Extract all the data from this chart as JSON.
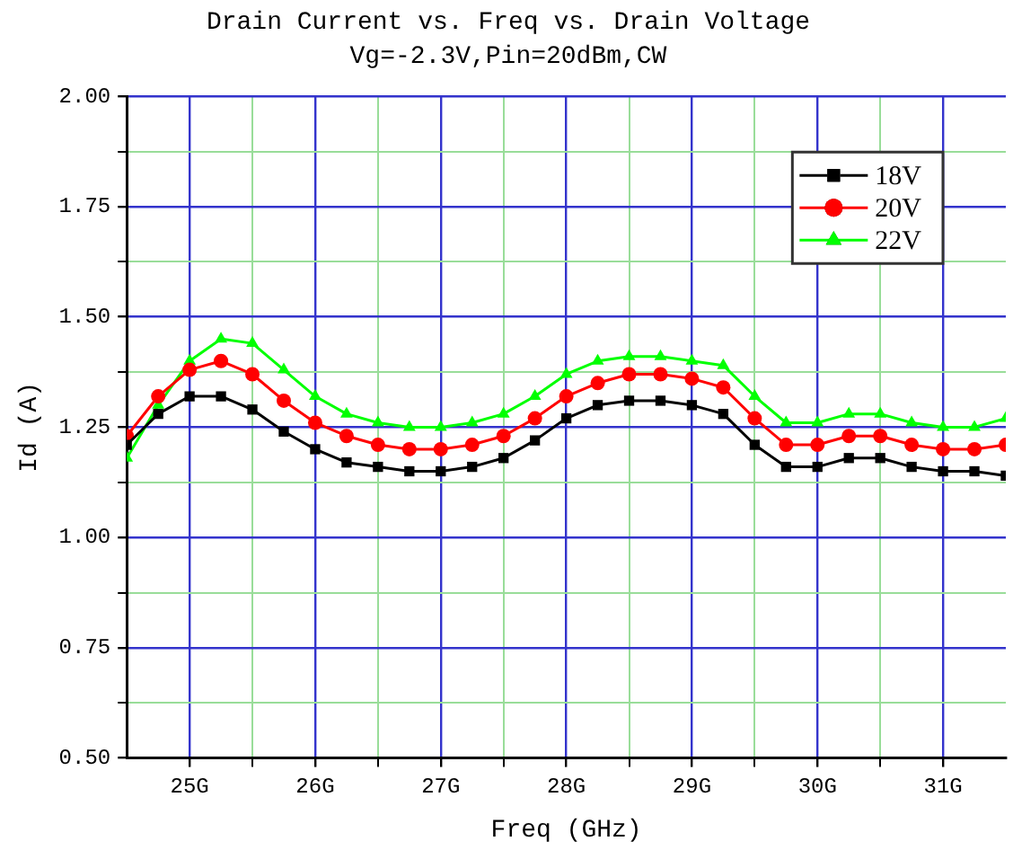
{
  "chart_data": {
    "type": "line",
    "title": "Drain Current vs. Freq vs. Drain Voltage",
    "subtitle": "Vg=-2.3V,Pin=20dBm,CW",
    "xlabel": "Freq (GHz)",
    "ylabel": "Id (A)",
    "x": [
      24.5,
      24.75,
      25,
      25.25,
      25.5,
      25.75,
      26,
      26.25,
      26.5,
      26.75,
      27,
      27.25,
      27.5,
      27.75,
      28,
      28.25,
      28.5,
      28.75,
      29,
      29.25,
      29.5,
      29.75,
      30,
      30.25,
      30.5,
      30.75,
      31,
      31.25,
      31.5
    ],
    "series": [
      {
        "name": "18V",
        "color": "#000000",
        "marker": "square",
        "values": [
          1.21,
          1.28,
          1.32,
          1.32,
          1.29,
          1.24,
          1.2,
          1.17,
          1.16,
          1.15,
          1.15,
          1.16,
          1.18,
          1.22,
          1.27,
          1.3,
          1.31,
          1.31,
          1.3,
          1.28,
          1.21,
          1.16,
          1.16,
          1.18,
          1.18,
          1.16,
          1.15,
          1.15,
          1.14
        ]
      },
      {
        "name": "20V",
        "color": "#ff0000",
        "marker": "circle",
        "values": [
          1.23,
          1.32,
          1.38,
          1.4,
          1.37,
          1.31,
          1.26,
          1.23,
          1.21,
          1.2,
          1.2,
          1.21,
          1.23,
          1.27,
          1.32,
          1.35,
          1.37,
          1.37,
          1.36,
          1.34,
          1.27,
          1.21,
          1.21,
          1.23,
          1.23,
          1.21,
          1.2,
          1.2,
          1.21
        ]
      },
      {
        "name": "22V",
        "color": "#00ff00",
        "marker": "triangle",
        "values": [
          1.18,
          1.3,
          1.4,
          1.45,
          1.44,
          1.38,
          1.32,
          1.28,
          1.26,
          1.25,
          1.25,
          1.26,
          1.28,
          1.32,
          1.37,
          1.4,
          1.41,
          1.41,
          1.4,
          1.39,
          1.32,
          1.26,
          1.26,
          1.28,
          1.28,
          1.26,
          1.25,
          1.25,
          1.27
        ]
      }
    ],
    "xlim": [
      24.5,
      31.5
    ],
    "xticks": [
      {
        "value": 25,
        "label": "25G"
      },
      {
        "value": 25.5,
        "label": null
      },
      {
        "value": 26,
        "label": "26G"
      },
      {
        "value": 26.5,
        "label": null
      },
      {
        "value": 27,
        "label": "27G"
      },
      {
        "value": 27.5,
        "label": null
      },
      {
        "value": 28,
        "label": "28G"
      },
      {
        "value": 28.5,
        "label": null
      },
      {
        "value": 29,
        "label": "29G"
      },
      {
        "value": 29.5,
        "label": null
      },
      {
        "value": 30,
        "label": "30G"
      },
      {
        "value": 30.5,
        "label": null
      },
      {
        "value": 31,
        "label": "31G"
      }
    ],
    "ylim": [
      0.5,
      2
    ],
    "yticks": [
      {
        "value": 0.5,
        "label": "0.50"
      },
      {
        "value": 0.625,
        "label": null
      },
      {
        "value": 0.75,
        "label": "0.75"
      },
      {
        "value": 0.875,
        "label": null
      },
      {
        "value": 1,
        "label": "1.00"
      },
      {
        "value": 1.125,
        "label": null
      },
      {
        "value": 1.25,
        "label": "1.25"
      },
      {
        "value": 1.375,
        "label": null
      },
      {
        "value": 1.5,
        "label": "1.50"
      },
      {
        "value": 1.625,
        "label": null
      },
      {
        "value": 1.75,
        "label": "1.75"
      },
      {
        "value": 1.875,
        "label": null
      },
      {
        "value": 2,
        "label": "2.00"
      }
    ],
    "grid": true,
    "legend": "top right",
    "line_style": "solid"
  }
}
